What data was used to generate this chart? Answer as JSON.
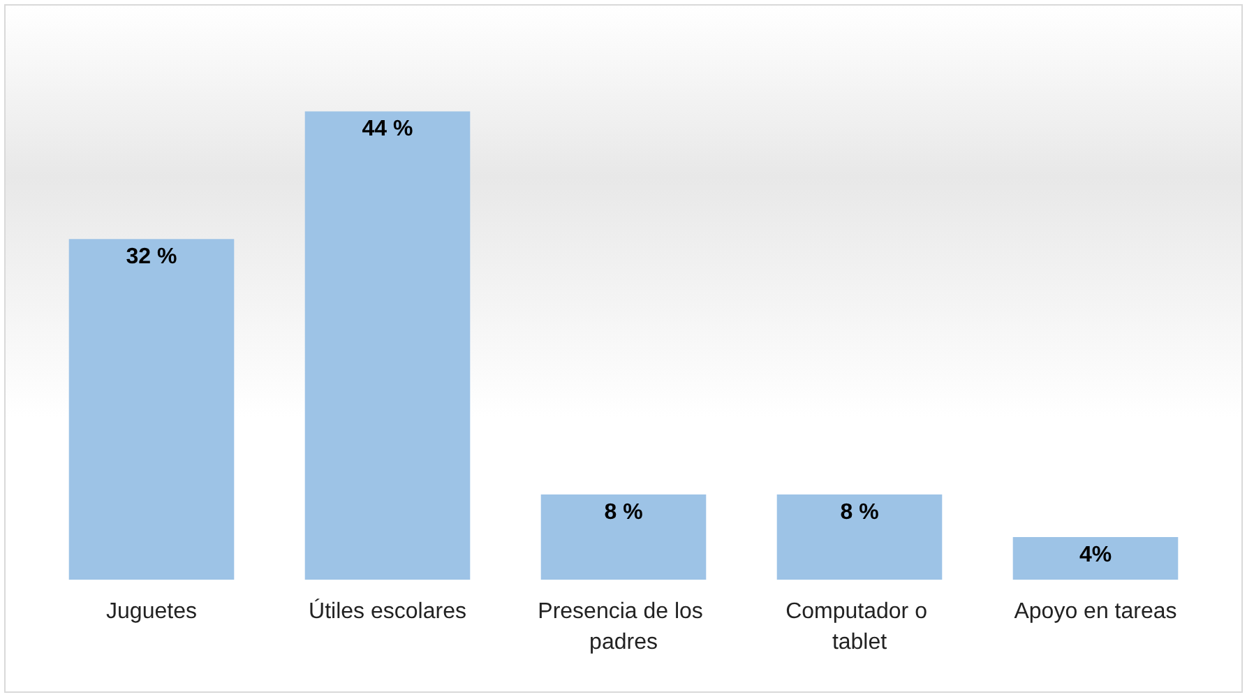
{
  "chart_data": {
    "type": "bar",
    "categories": [
      "Juguetes",
      "Útiles escolares",
      "Presencia de los padres",
      "Computador o tablet",
      "Apoyo en tareas"
    ],
    "values": [
      32,
      44,
      8,
      8,
      4
    ],
    "value_labels": [
      "32 %",
      "44 %",
      "8 %",
      "8 %",
      "4%"
    ],
    "color": "#9dc3e6",
    "grid": false
  }
}
